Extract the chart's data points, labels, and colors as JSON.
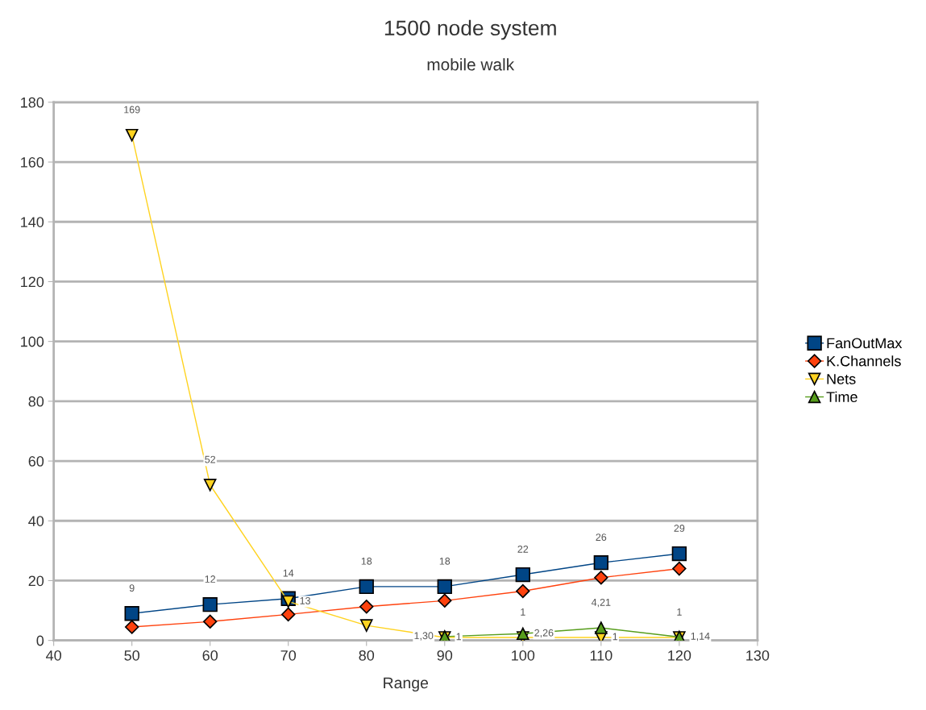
{
  "chart_data": {
    "type": "line",
    "title": "1500 node system",
    "subtitle": "mobile walk",
    "xlabel": "Range",
    "x": [
      50,
      60,
      70,
      80,
      90,
      100,
      110,
      120
    ],
    "series": [
      {
        "name": "FanOutMax",
        "color": "#004586",
        "marker": "square",
        "values": [
          9,
          12,
          14,
          18,
          18,
          22,
          26,
          29
        ],
        "value_labels": [
          "9",
          "12",
          "14",
          "18",
          "18",
          "22",
          "26",
          "29"
        ]
      },
      {
        "name": "K.Channels",
        "color": "#ff420e",
        "marker": "diamond",
        "values": [
          4.5,
          6.3,
          8.7,
          11.3,
          13.3,
          16.5,
          21,
          24
        ]
      },
      {
        "name": "Nets",
        "color": "#ffd320",
        "marker": "triangle_down",
        "values": [
          169,
          52,
          13,
          5,
          1,
          1,
          1,
          1
        ],
        "value_labels": [
          "169",
          "52",
          "13",
          null,
          "1",
          "1",
          "1",
          "1"
        ]
      },
      {
        "name": "Time",
        "color": "#579d1c",
        "marker": "triangle",
        "values": [
          null,
          null,
          null,
          null,
          1.3,
          2.26,
          4.21,
          1.14
        ],
        "value_labels": [
          null,
          null,
          null,
          null,
          "1,30",
          "2,26",
          "4,21",
          "1,14"
        ]
      }
    ],
    "xlim": [
      40,
      130
    ],
    "xticks": [
      40,
      50,
      60,
      70,
      80,
      90,
      100,
      110,
      120,
      130
    ],
    "ylim": [
      0,
      180
    ],
    "yticks": [
      0,
      20,
      40,
      60,
      80,
      100,
      120,
      140,
      160,
      180
    ],
    "grid": "y",
    "legend": "right"
  }
}
